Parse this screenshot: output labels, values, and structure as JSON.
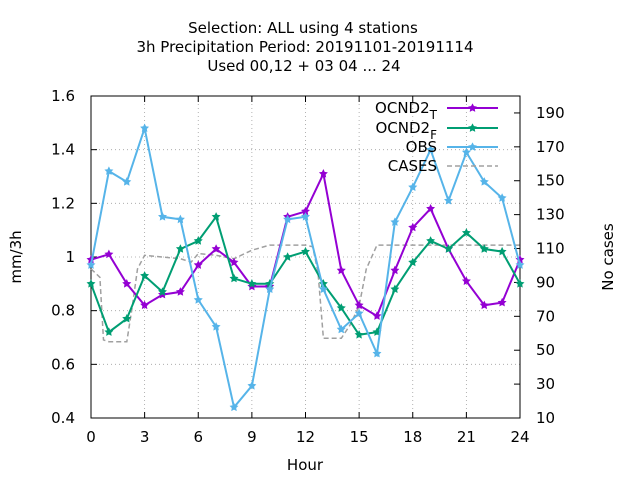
{
  "chart_data": {
    "type": "line",
    "title_lines": [
      "Selection: ALL using     4 stations",
      "3h Precipitation   Period: 20191101-20191114",
      "Used  00,12  + 03 04 ... 24"
    ],
    "xlabel": "Hour",
    "ylabel": "mm/3h",
    "y2label": "No cases",
    "xlim": [
      0,
      24
    ],
    "ylim": [
      0.4,
      1.6
    ],
    "y2lim": [
      10,
      200
    ],
    "x_ticks": [
      0,
      3,
      6,
      9,
      12,
      15,
      18,
      21,
      24
    ],
    "y_ticks": [
      "0.4",
      "0.6",
      "0.8",
      "1",
      "1.2",
      "1.4",
      "1.6"
    ],
    "y2_ticks": [
      "10",
      "30",
      "50",
      "70",
      "90",
      "110",
      "130",
      "150",
      "170",
      "190"
    ],
    "grid": true,
    "legend_position": "top-right",
    "x": [
      0,
      1,
      2,
      3,
      4,
      5,
      6,
      7,
      8,
      9,
      10,
      11,
      12,
      13,
      14,
      15,
      16,
      17,
      18,
      19,
      20,
      21,
      22,
      23,
      24
    ],
    "series": [
      {
        "name": "OCND2",
        "subscript": "T",
        "color": "#9400d3",
        "axis": "y",
        "values": [
          0.99,
          1.01,
          0.9,
          0.82,
          0.86,
          0.87,
          0.97,
          1.03,
          0.98,
          0.89,
          0.89,
          1.15,
          1.17,
          1.31,
          0.95,
          0.82,
          0.78,
          0.95,
          1.11,
          1.18,
          1.03,
          0.91,
          0.82,
          0.83,
          0.99
        ]
      },
      {
        "name": "OCND2",
        "subscript": "F",
        "color": "#009e73",
        "axis": "y",
        "values": [
          0.9,
          0.72,
          0.77,
          0.93,
          0.87,
          1.03,
          1.06,
          1.15,
          0.92,
          0.9,
          0.9,
          1.0,
          1.02,
          0.9,
          0.81,
          0.71,
          0.72,
          0.88,
          0.98,
          1.06,
          1.03,
          1.09,
          1.03,
          1.02,
          0.9
        ]
      },
      {
        "name": "OBS",
        "color": "#56b4e9",
        "axis": "y",
        "values": [
          0.97,
          1.32,
          1.28,
          1.48,
          1.15,
          1.14,
          0.84,
          0.74,
          0.44,
          0.52,
          0.88,
          1.14,
          1.15,
          0.88,
          0.73,
          0.79,
          0.64,
          1.13,
          1.26,
          1.4,
          1.21,
          1.39,
          1.28,
          1.22,
          0.97
        ]
      },
      {
        "name": "CASES",
        "color": "#a0a0a0",
        "axis": "y2",
        "dashed": true,
        "x": [
          0,
          0.5,
          0.7,
          1,
          2,
          2.3,
          2.6,
          3,
          4,
          5,
          5.6,
          6,
          7,
          8,
          9,
          10,
          11,
          11.5,
          12,
          12.4,
          12.7,
          13,
          13.6,
          14,
          14.5,
          15,
          15.4,
          16,
          17,
          18,
          19,
          20,
          21,
          22,
          23,
          24
        ],
        "values": [
          98,
          93,
          56,
          55,
          55,
          75,
          98,
          106,
          105,
          104,
          102,
          107,
          106,
          104,
          109,
          112,
          112,
          112,
          112,
          111,
          96,
          57,
          57,
          57,
          65,
          76,
          98,
          112,
          112,
          112,
          112,
          112,
          112,
          112,
          112,
          112
        ]
      }
    ]
  }
}
